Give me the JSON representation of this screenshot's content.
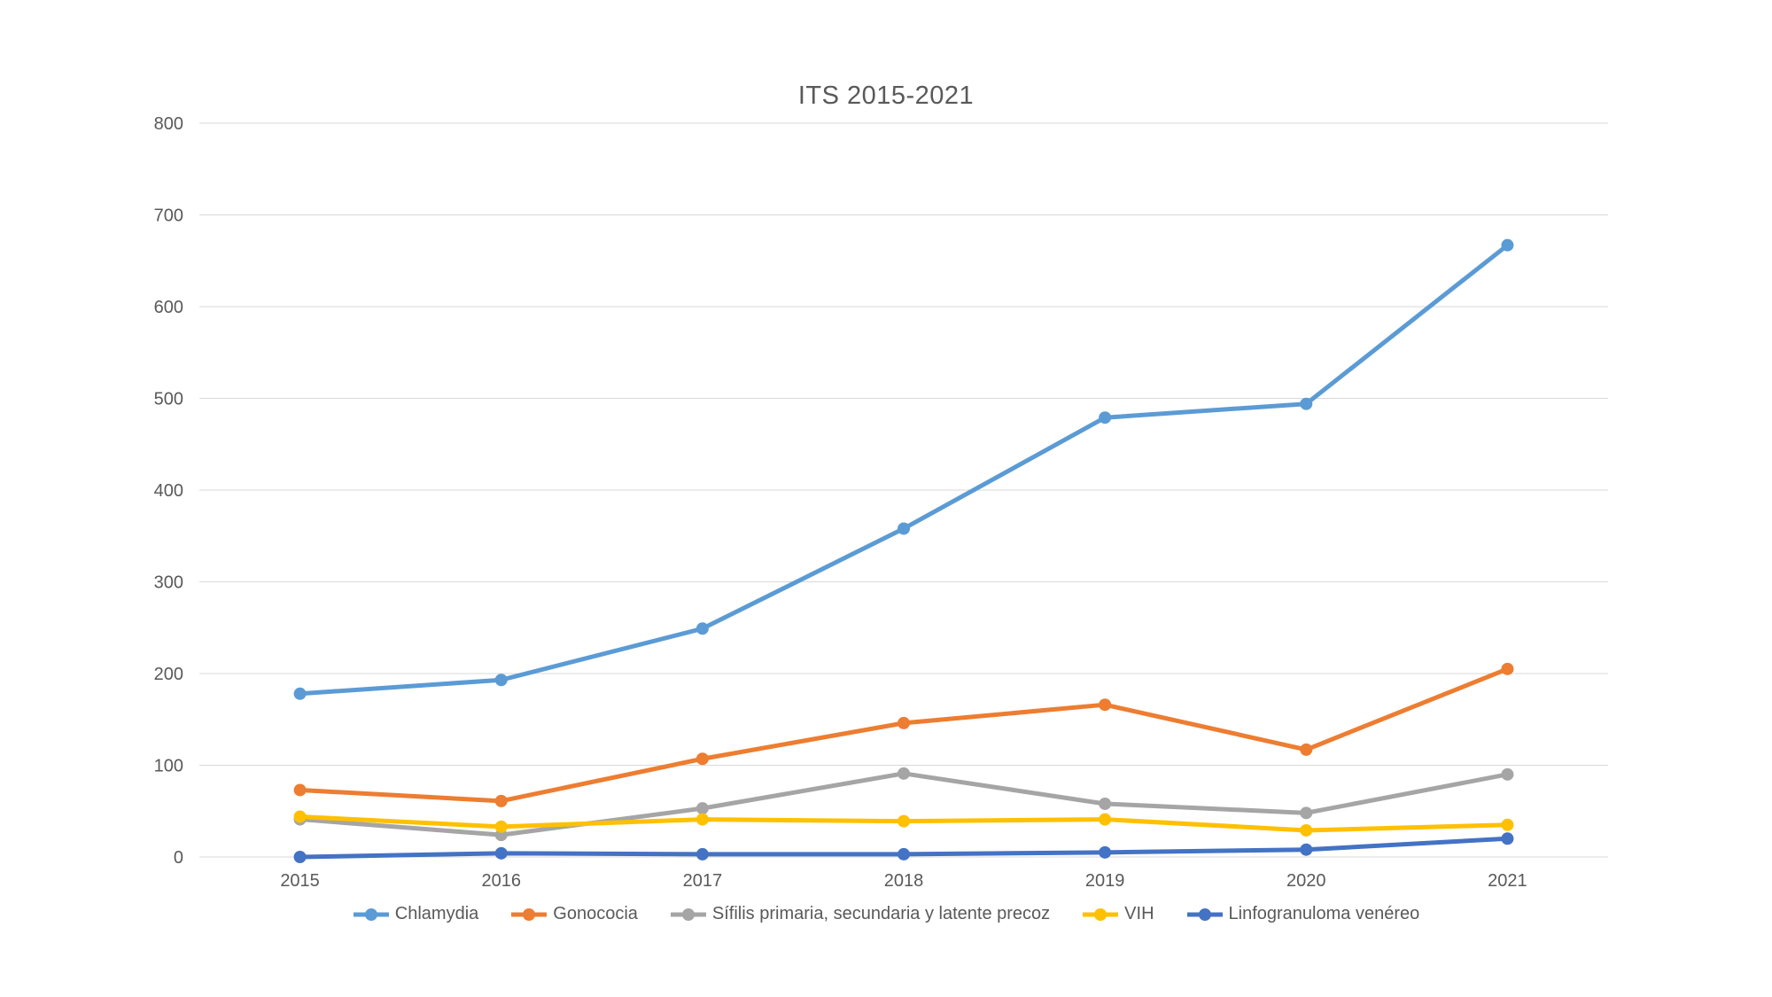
{
  "chart": {
    "title": "ITS 2015-2021"
  },
  "chart_data": {
    "type": "line",
    "title": "ITS 2015-2021",
    "categories": [
      "2015",
      "2016",
      "2017",
      "2018",
      "2019",
      "2020",
      "2021"
    ],
    "series": [
      {
        "name": "Chlamydia",
        "color": "#5B9BD5",
        "values": [
          178,
          193,
          249,
          358,
          479,
          494,
          667
        ]
      },
      {
        "name": "Gonococia",
        "color": "#ED7D31",
        "values": [
          73,
          61,
          107,
          146,
          166,
          117,
          205
        ]
      },
      {
        "name": "Sífilis primaria, secundaria y latente precoz",
        "color": "#A5A5A5",
        "values": [
          41,
          24,
          53,
          91,
          58,
          48,
          90
        ]
      },
      {
        "name": "VIH",
        "color": "#FFC000",
        "values": [
          44,
          33,
          41,
          39,
          41,
          29,
          35
        ]
      },
      {
        "name": "Linfogranuloma venéreo",
        "color": "#4472C4",
        "values": [
          0,
          4,
          3,
          3,
          5,
          8,
          20
        ]
      }
    ],
    "xlabel": "",
    "ylabel": "",
    "ylim": [
      0,
      800
    ],
    "y_ticks": [
      0,
      100,
      200,
      300,
      400,
      500,
      600,
      700,
      800
    ],
    "grid": true,
    "legend_position": "bottom",
    "gridline_color": "#D9D9D9",
    "axis_text_color": "#595959",
    "background_color": "#FFFFFF"
  }
}
